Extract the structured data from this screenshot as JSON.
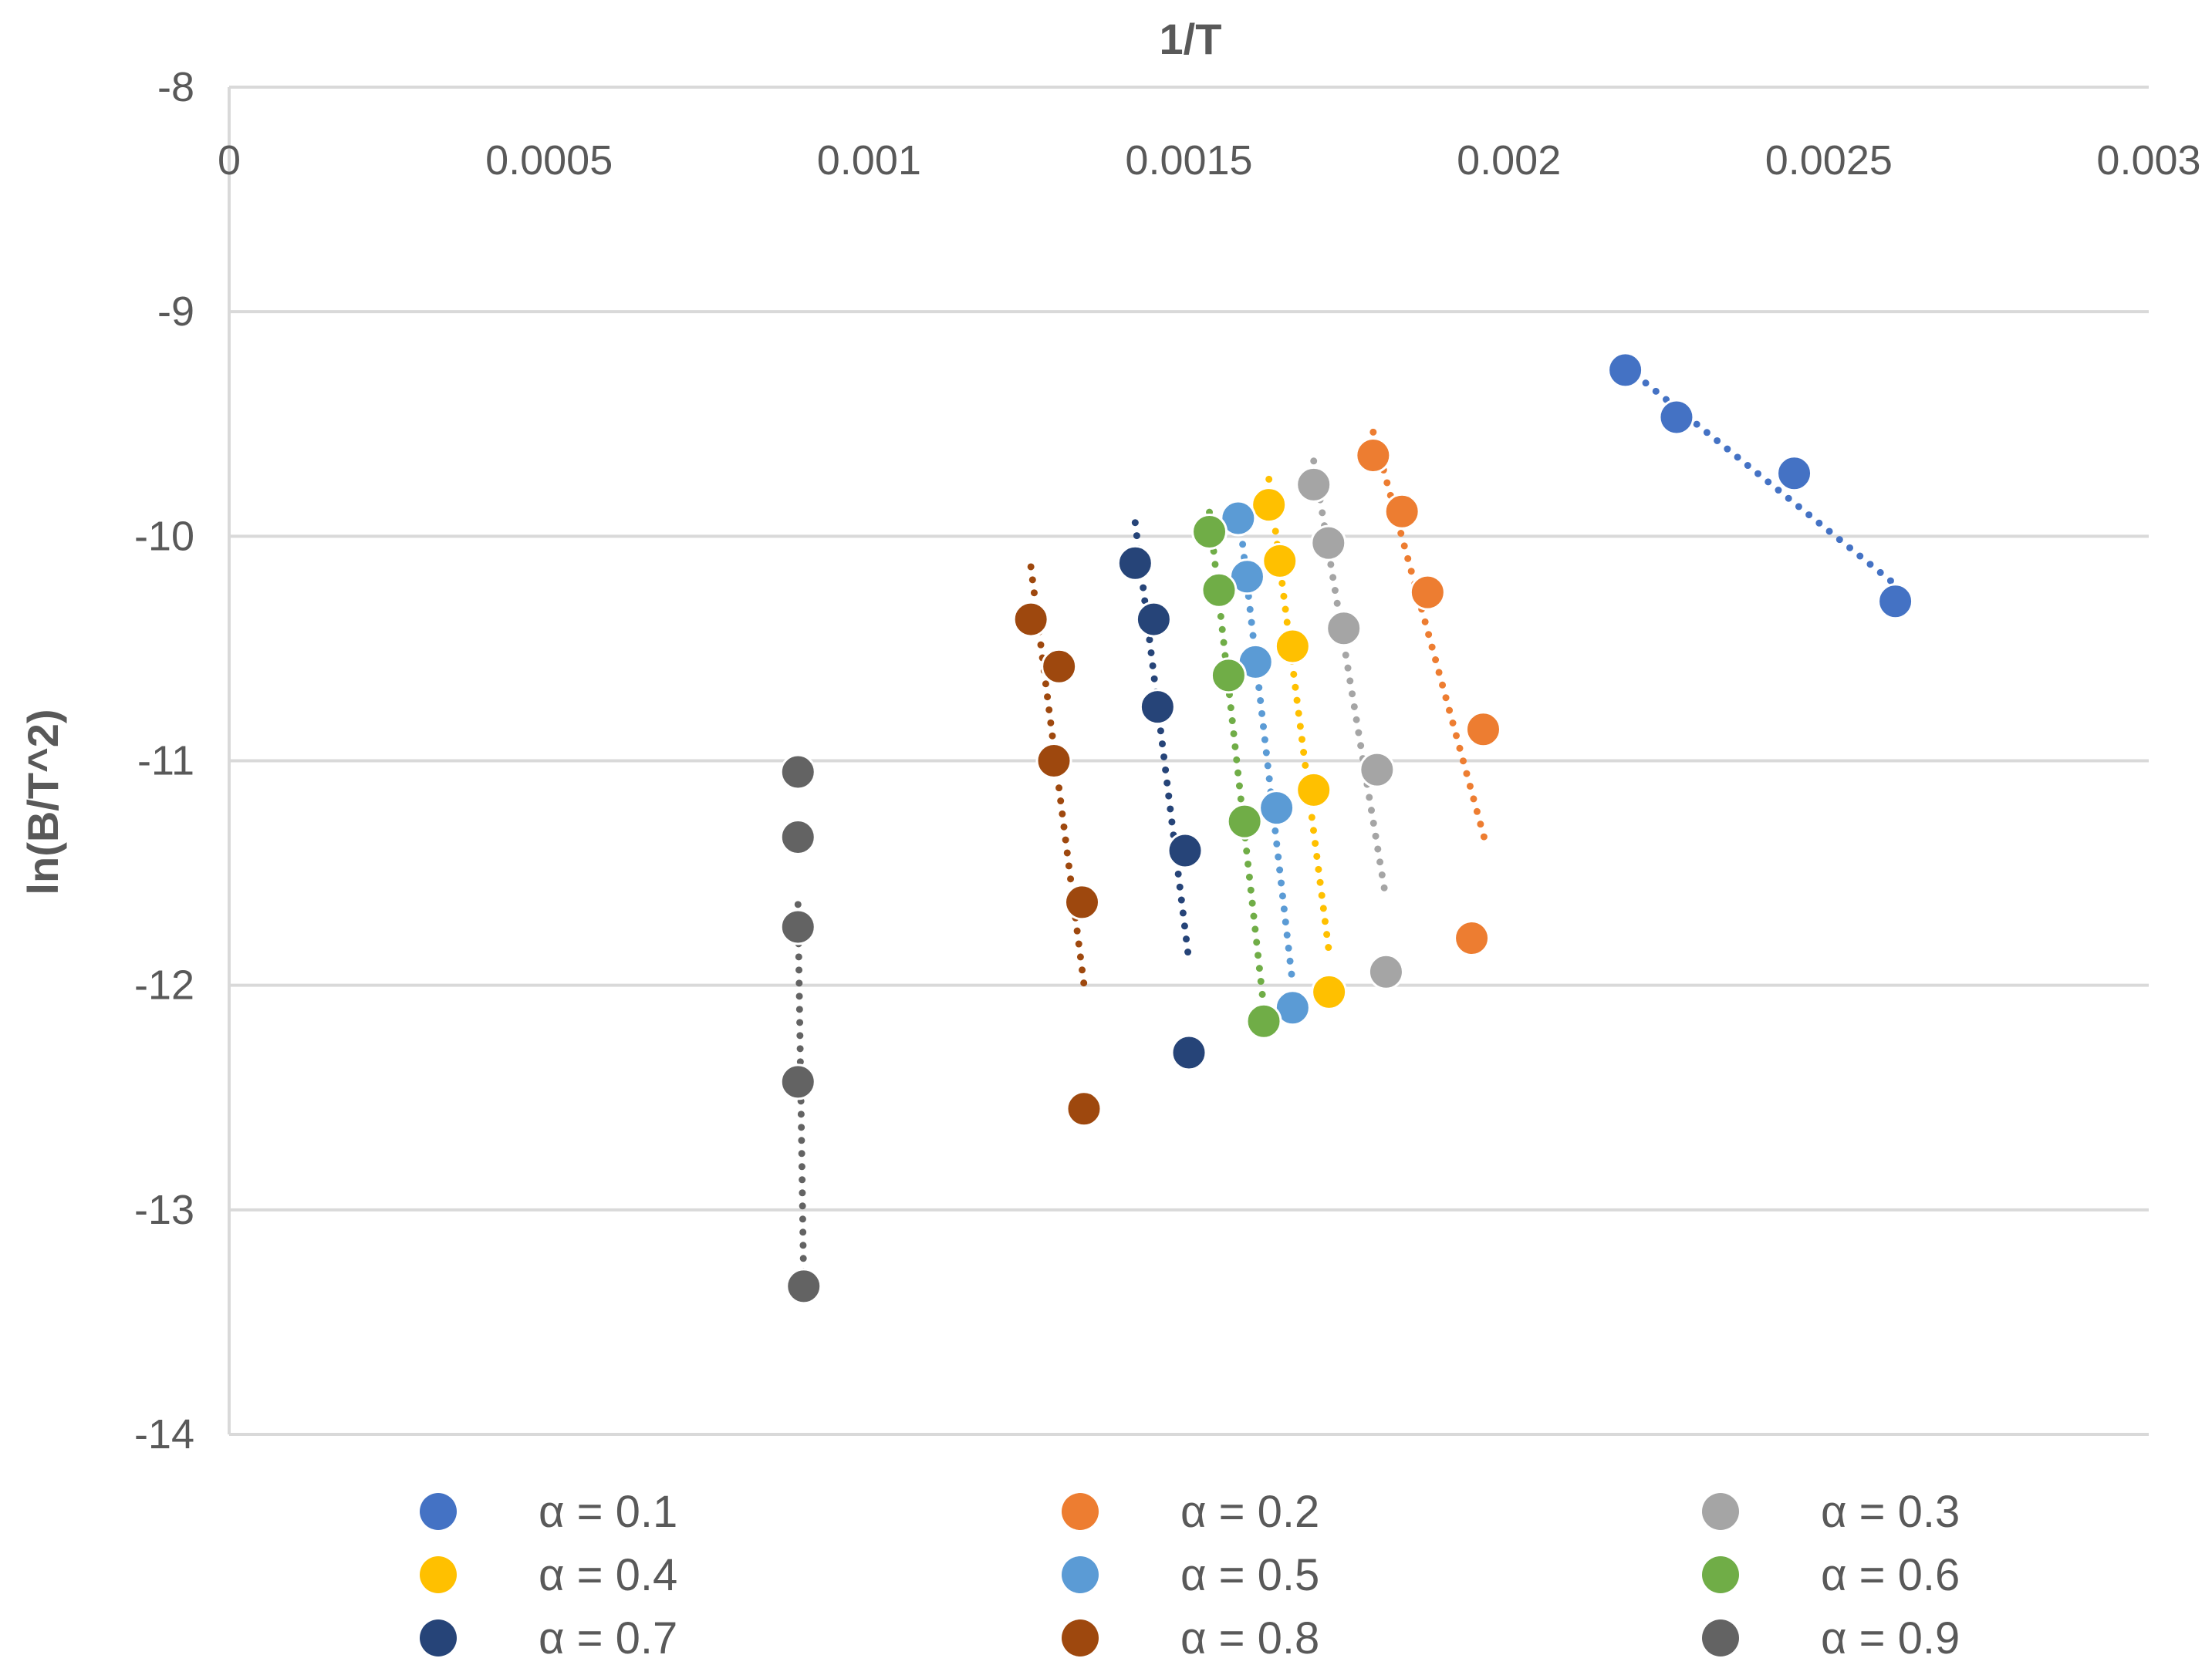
{
  "chart_data": {
    "type": "scatter",
    "title": "",
    "xlabel": "1/T",
    "ylabel": "ln(B/T^2)",
    "xlim": [
      0,
      0.003
    ],
    "ylim": [
      -14,
      -8
    ],
    "x_ticks": [
      {
        "value": 0,
        "label": "0"
      },
      {
        "value": 0.0005,
        "label": "0.0005"
      },
      {
        "value": 0.001,
        "label": "0.001"
      },
      {
        "value": 0.0015,
        "label": "0.0015"
      },
      {
        "value": 0.002,
        "label": "0.002"
      },
      {
        "value": 0.0025,
        "label": "0.0025"
      },
      {
        "value": 0.003,
        "label": "0.003"
      }
    ],
    "y_ticks": [
      {
        "value": -8,
        "label": "-8"
      },
      {
        "value": -9,
        "label": "-9"
      },
      {
        "value": -10,
        "label": "-10"
      },
      {
        "value": -11,
        "label": "-11"
      },
      {
        "value": -12,
        "label": "-12"
      },
      {
        "value": -13,
        "label": "-13"
      },
      {
        "value": -14,
        "label": "-14"
      }
    ],
    "grid": true,
    "trendline": "linear, dotted",
    "legend_position": "bottom",
    "series": [
      {
        "name": "α = 0.1",
        "color": "#4472C4",
        "x": [
          0.002182,
          0.002262,
          0.002446,
          0.002604
        ],
        "y": [
          -9.26,
          -9.47,
          -9.72,
          -10.29
        ],
        "trend_x": [
          0.002182,
          0.002604
        ]
      },
      {
        "name": "α = 0.2",
        "color": "#ED7D31",
        "x": [
          0.001788,
          0.001833,
          0.001873,
          0.001942,
          0.00196
        ],
        "y": [
          -9.64,
          -9.89,
          -10.25,
          -11.79,
          -10.86
        ],
        "trend_x": [
          0.001788,
          0.001963
        ]
      },
      {
        "name": "α = 0.3",
        "color": "#A5A5A5",
        "x": [
          0.001695,
          0.001718,
          0.001742,
          0.001794,
          0.001808
        ],
        "y": [
          -9.77,
          -10.03,
          -10.41,
          -11.04,
          -11.94
        ],
        "trend_x": [
          0.001695,
          0.001808
        ]
      },
      {
        "name": "α = 0.4",
        "color": "#FFC000",
        "x": [
          0.001625,
          0.001642,
          0.001662,
          0.001695,
          0.001719
        ],
        "y": [
          -9.86,
          -10.11,
          -10.49,
          -11.13,
          -12.03
        ],
        "trend_x": [
          0.001625,
          0.001719
        ]
      },
      {
        "name": "α = 0.5",
        "color": "#5B9BD5",
        "x": [
          0.001577,
          0.001591,
          0.001604,
          0.001637,
          0.001662
        ],
        "y": [
          -9.92,
          -10.18,
          -10.56,
          -11.21,
          -12.1
        ],
        "trend_x": [
          0.001577,
          0.001662
        ]
      },
      {
        "name": "α = 0.6",
        "color": "#70AD47",
        "x": [
          0.001532,
          0.001547,
          0.001562,
          0.001587,
          0.001617
        ],
        "y": [
          -9.98,
          -10.24,
          -10.62,
          -11.27,
          -12.16
        ],
        "trend_x": [
          0.001532,
          0.001617
        ]
      },
      {
        "name": "α = 0.7",
        "color": "#264478",
        "x": [
          0.001416,
          0.001445,
          0.001451,
          0.001494,
          0.0015
        ],
        "y": [
          -10.12,
          -10.37,
          -10.76,
          -11.4,
          -12.3
        ],
        "trend_x": [
          0.001416,
          0.0015
        ]
      },
      {
        "name": "α = 0.8",
        "color": "#9E480E",
        "x": [
          0.001253,
          0.001297,
          0.001289,
          0.001333,
          0.001336
        ],
        "y": [
          -10.37,
          -10.58,
          -11.0,
          -11.63,
          -12.55
        ],
        "trend_x": [
          0.001253,
          0.001336
        ]
      },
      {
        "name": "α = 0.9",
        "color": "#636363",
        "x": [
          0.000889,
          0.000889,
          0.000889,
          0.000889,
          0.000898
        ],
        "y": [
          -11.05,
          -11.34,
          -11.74,
          -12.43,
          -13.34
        ],
        "trend_x": [
          0.000889,
          0.000898
        ]
      }
    ]
  }
}
